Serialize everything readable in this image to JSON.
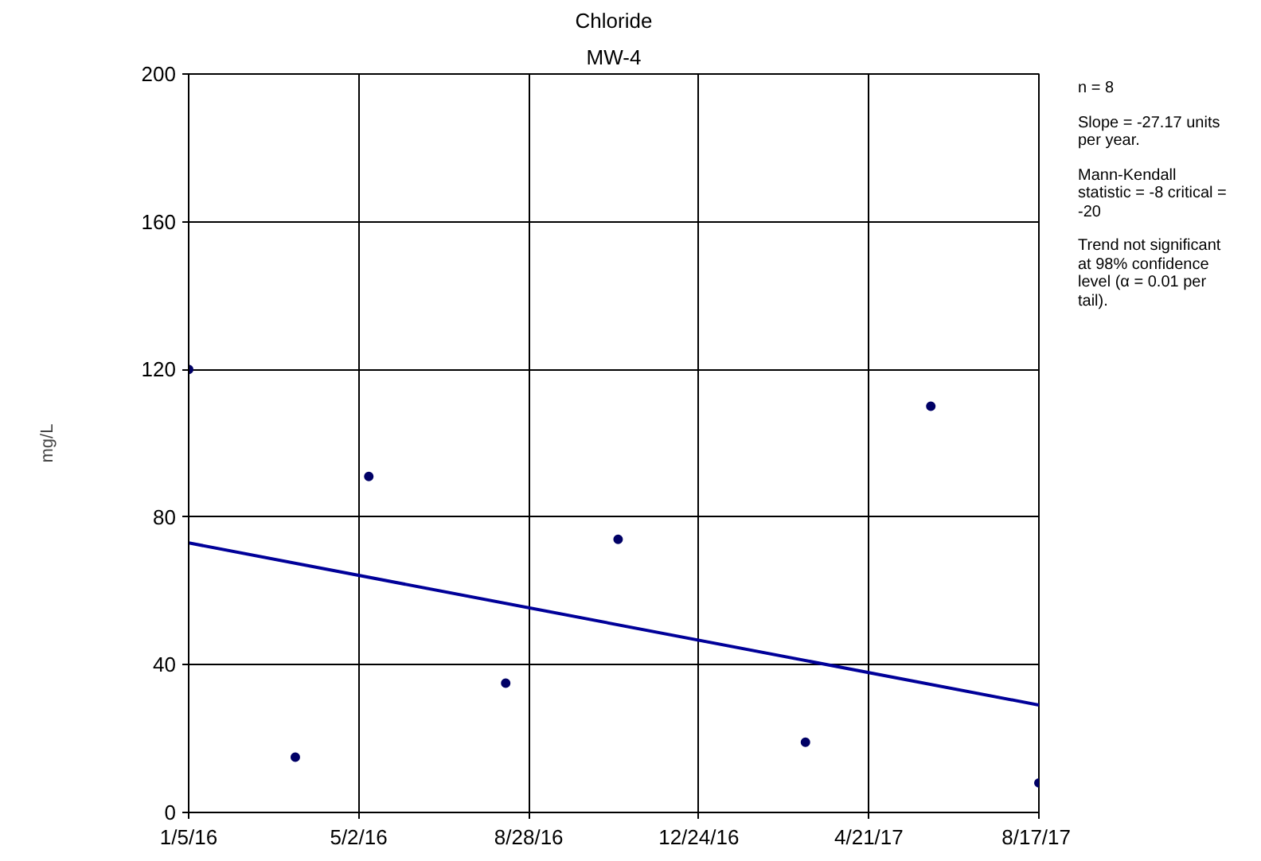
{
  "chart_data": {
    "type": "scatter",
    "title": "Chloride",
    "subtitle": "MW-4",
    "ylabel": "mg/L",
    "x": [
      "2016-01-05",
      "2016-03-19",
      "2016-05-09",
      "2016-08-12",
      "2016-10-29",
      "2017-03-08",
      "2017-06-03",
      "2017-08-17"
    ],
    "series": [
      {
        "color": "#000066",
        "marker": "circle",
        "values": [
          120,
          15,
          91,
          35,
          74,
          19,
          110,
          8
        ]
      },
      {
        "type": "line",
        "color": "#000099",
        "x": [
          "2016-01-05",
          "2017-08-17"
        ],
        "values": [
          73,
          29.1
        ]
      }
    ],
    "xlim": [
      "2016-01-05",
      "2017-08-17"
    ],
    "xticks": [
      {
        "value": "2016-01-05",
        "label": "1/5/16"
      },
      {
        "value": "2016-05-02",
        "label": "5/2/16"
      },
      {
        "value": "2016-08-28",
        "label": "8/28/16"
      },
      {
        "value": "2016-12-24",
        "label": "12/24/16"
      },
      {
        "value": "2017-04-21",
        "label": "4/21/17"
      },
      {
        "value": "2017-08-17",
        "label": "8/17/17"
      }
    ],
    "ylim": [
      0,
      200
    ],
    "yticks": [
      0,
      40,
      80,
      120,
      160,
      200
    ],
    "grid": true,
    "annotations": [
      "n = 8",
      "Slope = -27.17 units per year.",
      "Mann-Kendall statistic = -8 critical = -20",
      "Trend not significant at 98% confidence level (α = 0.01 per tail)."
    ]
  }
}
